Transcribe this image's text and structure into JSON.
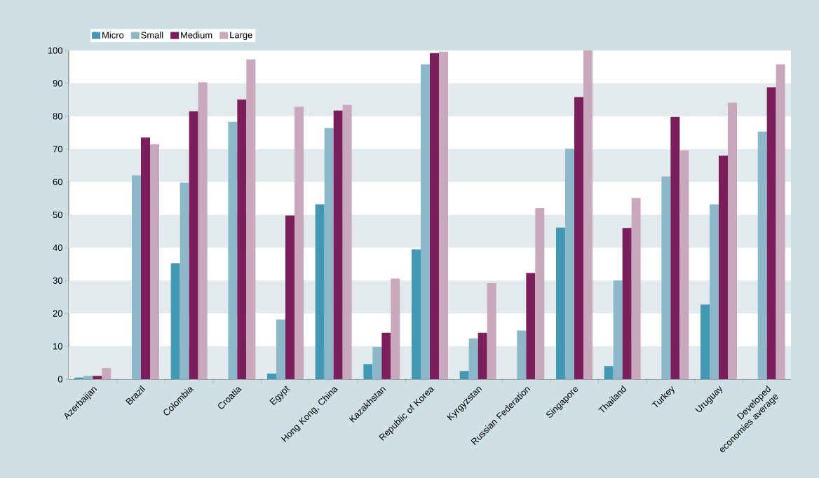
{
  "chart_data": {
    "type": "bar",
    "categories": [
      "Azerbaijan",
      "Brazil",
      "Colombia",
      "Croatia",
      "Egypt",
      "Hong Kong, China",
      "Kazakhstan",
      "Republic of Korea",
      "Kyrgyzstan",
      "Russian Federation",
      "Singapore",
      "Thailand",
      "Turkey",
      "Uruguay",
      "Developed economies average"
    ],
    "series": [
      {
        "name": "Micro",
        "color": "#4399b3",
        "values": [
          0.5,
          null,
          35.3,
          null,
          1.7,
          53.2,
          4.6,
          39.5,
          2.5,
          null,
          46.1,
          4,
          null,
          22.7,
          null
        ]
      },
      {
        "name": "Small",
        "color": "#8cb8c9",
        "values": [
          1,
          62,
          59.8,
          78.3,
          18.2,
          76.4,
          9.8,
          95.8,
          12.4,
          14.8,
          70.1,
          30,
          61.7,
          53.2,
          75.3
        ]
      },
      {
        "name": "Medium",
        "color": "#7b1f5c",
        "values": [
          1,
          73.5,
          81.5,
          85.1,
          49.8,
          81.7,
          14.1,
          99.2,
          14.1,
          32.3,
          85.8,
          46,
          79.8,
          68,
          88.8
        ]
      },
      {
        "name": "Large",
        "color": "#c9a8bd",
        "values": [
          3.4,
          71.5,
          90.3,
          97.3,
          82.9,
          83.4,
          30.6,
          99.6,
          29.2,
          52,
          100,
          55.1,
          69.6,
          84.1,
          95.8
        ]
      }
    ],
    "ylim": [
      0,
      100
    ],
    "yticks": [
      0,
      10,
      20,
      30,
      40,
      50,
      60,
      70,
      80,
      90,
      100
    ],
    "bands": [
      {
        "axis": "y",
        "from": 0,
        "to": 10,
        "color": "#e3eaee"
      },
      {
        "axis": "y",
        "from": 20,
        "to": 30,
        "color": "#e3eaee"
      },
      {
        "axis": "y",
        "from": 40,
        "to": 50,
        "color": "#e3eaee"
      },
      {
        "axis": "y",
        "from": 60,
        "to": 70,
        "color": "#e3eaee"
      },
      {
        "axis": "y",
        "from": 80,
        "to": 90,
        "color": "#e3eaee"
      }
    ],
    "legend": "top left"
  }
}
